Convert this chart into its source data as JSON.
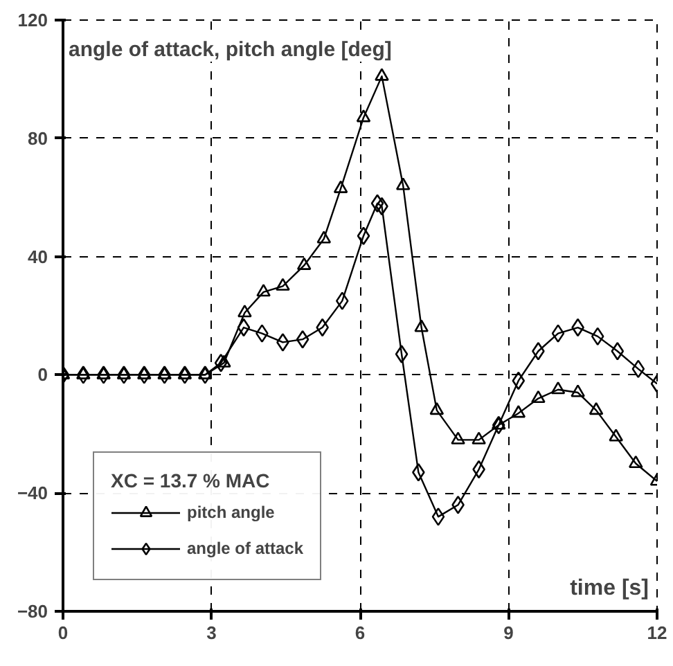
{
  "chart_data": {
    "type": "line",
    "title": "angle of attack, pitch angle [deg]",
    "xlabel": "time [s]",
    "legend_title": "XC = 13.7 % MAC",
    "xlim": [
      0,
      12
    ],
    "ylim": [
      -80,
      120
    ],
    "xticks": [
      0,
      3,
      6,
      9,
      12
    ],
    "yticks": [
      -80,
      -40,
      0,
      40,
      80,
      120
    ],
    "grid": true,
    "legend": "bottom left",
    "line_style": "solid",
    "series": [
      {
        "name": "pitch angle",
        "color": "#000000",
        "marker": "triangle",
        "x": [
          0,
          0.41,
          0.82,
          1.23,
          1.64,
          2.05,
          2.46,
          2.87,
          3.25,
          3.67,
          4.05,
          4.44,
          4.87,
          5.27,
          5.61,
          6.07,
          6.44,
          6.87,
          7.24,
          7.55,
          7.98,
          8.4,
          8.8,
          9.2,
          9.6,
          10.0,
          10.4,
          10.77,
          11.17,
          11.57,
          12
        ],
        "values": [
          0,
          0,
          0,
          0,
          0,
          0,
          0,
          0,
          4,
          21,
          28,
          30,
          37,
          46,
          63,
          87,
          101,
          64,
          16,
          -12,
          -22,
          -22,
          -17,
          -13,
          -8,
          -5,
          -6,
          -12,
          -21,
          -30,
          -36
        ]
      },
      {
        "name": "angle of attack",
        "color": "#000000",
        "marker": "diamond",
        "x": [
          0,
          0.41,
          0.82,
          1.23,
          1.64,
          2.05,
          2.46,
          2.87,
          3.19,
          3.65,
          4.02,
          4.44,
          4.84,
          5.24,
          5.64,
          6.07,
          6.35,
          6.44,
          6.84,
          7.18,
          7.58,
          7.98,
          8.4,
          8.8,
          9.2,
          9.6,
          10.0,
          10.4,
          10.8,
          11.2,
          11.62,
          12
        ],
        "values": [
          0,
          0,
          0,
          0,
          0,
          0,
          0,
          0,
          4,
          16,
          14,
          11,
          12,
          16,
          25,
          47,
          58,
          57,
          7,
          -33,
          -48,
          -44,
          -32,
          -17,
          -2,
          8,
          14,
          16,
          13,
          8,
          2,
          -3
        ]
      }
    ]
  }
}
